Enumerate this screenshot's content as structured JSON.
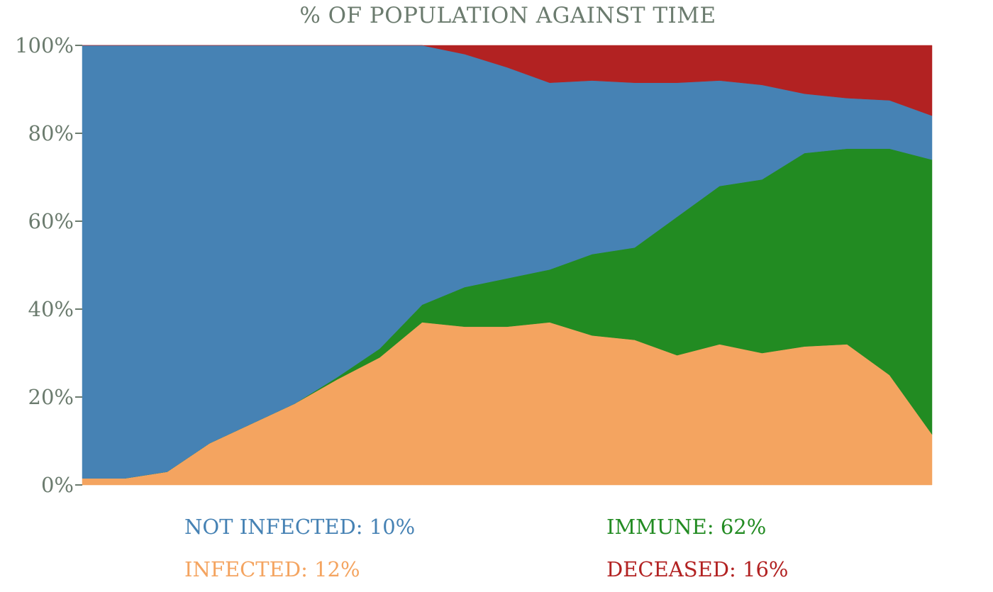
{
  "chart_data": {
    "type": "area",
    "stacked": true,
    "normalized": true,
    "title": "% OF POPULATION AGAINST TIME",
    "xlabel": "",
    "ylabel": "",
    "ylim": [
      0,
      100
    ],
    "yticks": [
      "0%",
      "20%",
      "40%",
      "60%",
      "80%",
      "100%"
    ],
    "grid": false,
    "legend_placement": "bottom",
    "x": [
      0,
      5,
      10,
      15,
      20,
      25,
      30,
      35,
      40,
      45,
      50,
      55,
      60,
      65,
      70,
      75,
      80,
      85,
      90,
      95,
      100
    ],
    "series": [
      {
        "key": "infected",
        "color": "#f4a460",
        "values": [
          1.5,
          1.5,
          3,
          9.5,
          14,
          18.5,
          24,
          29,
          37,
          36,
          36,
          37,
          34,
          33,
          29.5,
          32,
          30,
          31.5,
          32,
          25,
          11.5
        ]
      },
      {
        "key": "immune",
        "color": "#228b22",
        "values": [
          0,
          0,
          0,
          0,
          0,
          0,
          0.5,
          2,
          4,
          9,
          11,
          12,
          18.5,
          21,
          31.5,
          36,
          39.5,
          44,
          44.5,
          51.5,
          62.5
        ]
      },
      {
        "key": "not_infected",
        "color": "#4682b4",
        "values": [
          98.5,
          98.5,
          97,
          90.5,
          86,
          81.5,
          75.5,
          69,
          59,
          53,
          48,
          42.5,
          39.5,
          37.5,
          30.5,
          24,
          21.5,
          13.5,
          11.5,
          11,
          10
        ]
      },
      {
        "key": "deceased",
        "color": "#b22222",
        "values": [
          0,
          0,
          0,
          0,
          0,
          0,
          0,
          0,
          0,
          2,
          5,
          8.5,
          8,
          8.5,
          8.5,
          8,
          9,
          11,
          12,
          12.5,
          16
        ]
      }
    ]
  },
  "legend": {
    "not_infected": {
      "text": "NOT INFECTED: 10%",
      "color": "#4682b4"
    },
    "immune": {
      "text": "IMMUNE: 62%",
      "color": "#228b22"
    },
    "infected": {
      "text": "INFECTED: 12%",
      "color": "#f4a460"
    },
    "deceased": {
      "text": "DECEASED: 16%",
      "color": "#b22222"
    }
  }
}
